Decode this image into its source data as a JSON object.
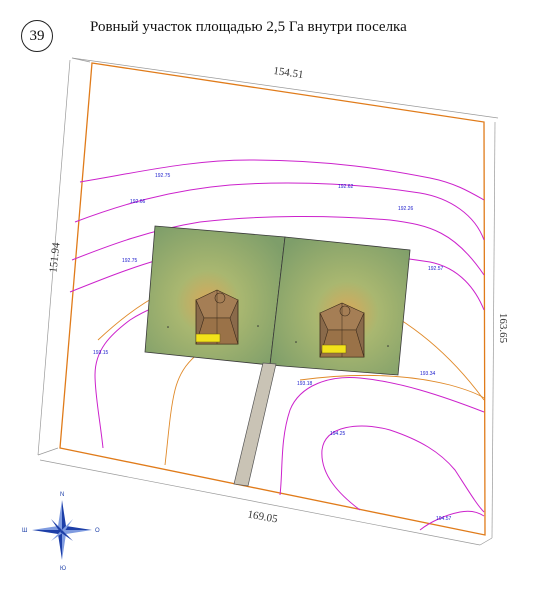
{
  "header": {
    "plot_number": "39",
    "title": "Ровный участок площадью 2,5 Га внутри поселка"
  },
  "dimensions": {
    "top": "154.51",
    "left": "151.94",
    "right": "163.65",
    "bottom": "169.05"
  },
  "elevations": {
    "e1": "192.75",
    "e2": "192.66",
    "e3": "192.62",
    "e4": "192.26",
    "e5": "192.75",
    "e6": "192.57",
    "e7": "193.15",
    "e8": "193.18",
    "e9": "193.34",
    "e10": "194.25",
    "e11": "194.57"
  },
  "compass": {
    "north": "N",
    "south": "Ю",
    "west": "Ш",
    "east": "О"
  },
  "colors": {
    "boundary": "#e07b1a",
    "contour_magenta": "#cc22cc",
    "contour_orange": "#e08a2a",
    "lot_green": "#8fb07a",
    "road": "#c9c3b5",
    "compass": "#1d3fa8"
  }
}
